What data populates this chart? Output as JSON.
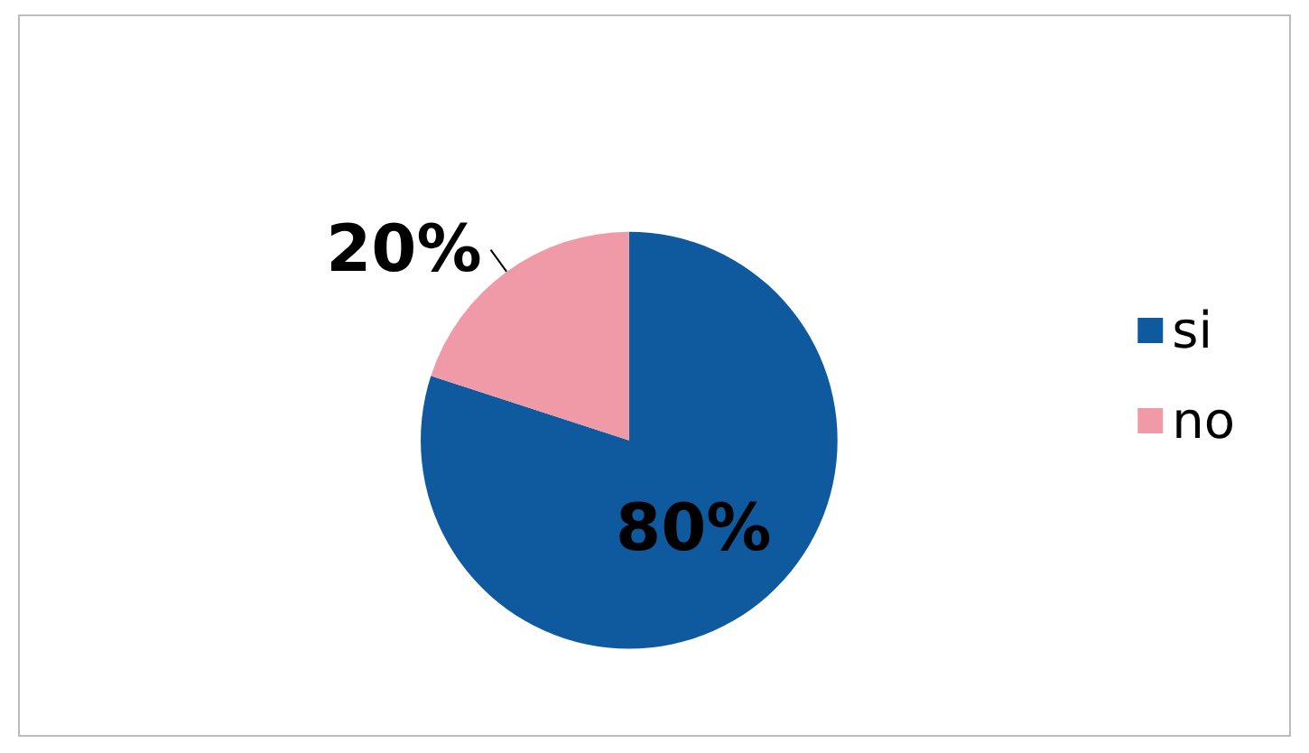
{
  "chart_data": {
    "type": "pie",
    "categories": [
      "si",
      "no"
    ],
    "values": [
      80,
      20
    ],
    "colors": [
      "#0f5a9e",
      "#ef9aa6"
    ],
    "value_labels": [
      "80%",
      "20%"
    ],
    "legend": "right"
  }
}
